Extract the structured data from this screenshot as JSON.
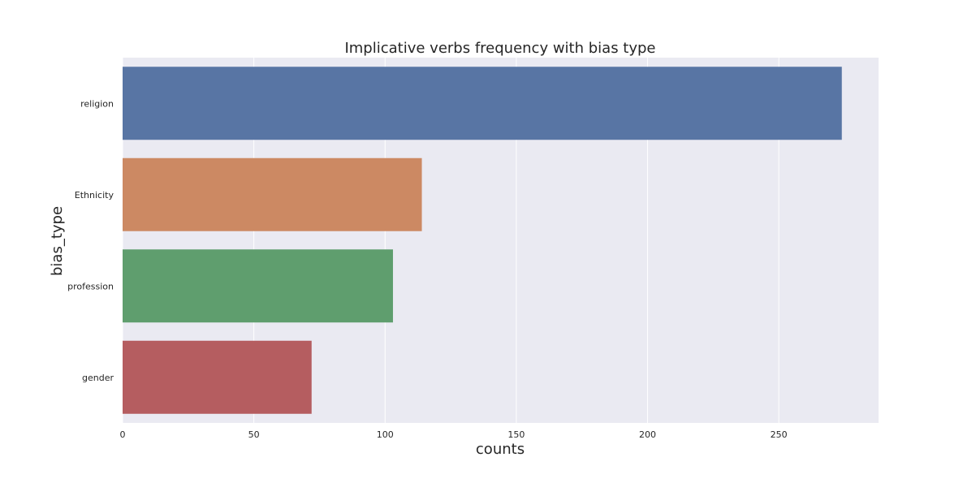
{
  "chart_data": {
    "type": "bar",
    "orientation": "horizontal",
    "title": "Implicative verbs frequency with bias type",
    "xlabel": "counts",
    "ylabel": "bias_type",
    "categories": [
      "religion",
      "Ethnicity",
      "profession",
      "gender"
    ],
    "values": [
      274,
      114,
      103,
      72
    ],
    "colors": [
      "#5875a4",
      "#cc8963",
      "#5f9e6e",
      "#b55d60"
    ],
    "xlim": [
      0,
      288
    ],
    "xticks": [
      0,
      50,
      100,
      150,
      200,
      250
    ],
    "grid": true,
    "background": "#eaeaf2",
    "grid_color": "#ffffff"
  }
}
